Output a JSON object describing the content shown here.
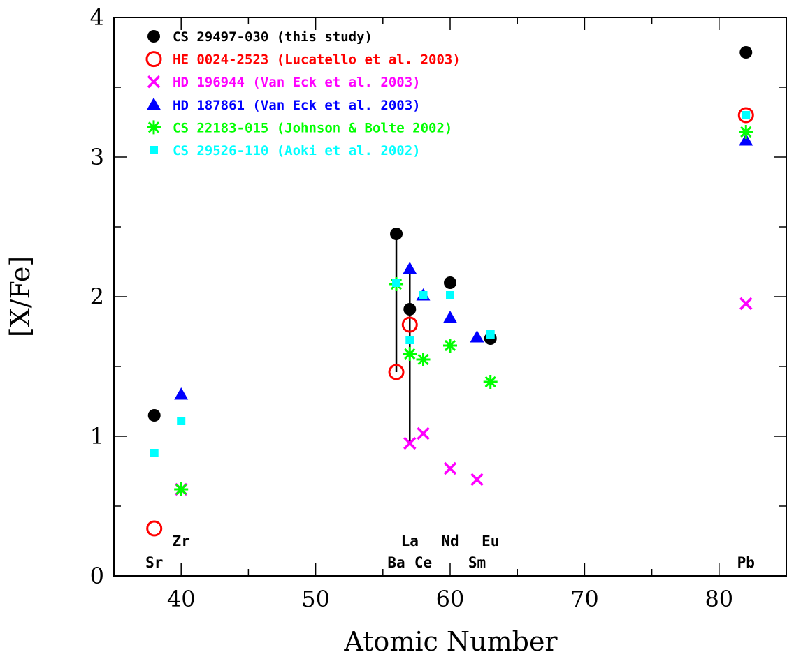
{
  "chart_data": {
    "type": "scatter",
    "xlabel": "Atomic Number",
    "ylabel": "[X/Fe]",
    "xlim": [
      35,
      85
    ],
    "ylim": [
      0,
      4
    ],
    "x_ticks": [
      40,
      50,
      60,
      70,
      80
    ],
    "y_ticks": [
      0,
      1,
      2,
      3,
      4
    ],
    "minor_x_step": 5,
    "minor_y_step": 0.5,
    "grid": false,
    "legend_position": "top-left",
    "series": [
      {
        "name": "CS 29497-030 (this study)",
        "marker": "filled-circle",
        "color": "#000000",
        "points": [
          [
            38,
            1.15
          ],
          [
            56,
            2.45
          ],
          [
            57,
            1.91
          ],
          [
            60,
            2.1
          ],
          [
            63,
            1.7
          ],
          [
            82,
            3.75
          ]
        ]
      },
      {
        "name": "HE 0024-2523 (Lucatello et al. 2003)",
        "marker": "open-circle",
        "color": "#ff0000",
        "points": [
          [
            38,
            0.34
          ],
          [
            56,
            1.46
          ],
          [
            57,
            1.8
          ],
          [
            82,
            3.3
          ]
        ]
      },
      {
        "name": "HD 196944 (Van Eck et al. 2003)",
        "marker": "cross",
        "color": "#ff00ff",
        "points": [
          [
            40,
            0.62
          ],
          [
            57,
            0.95
          ],
          [
            58,
            1.02
          ],
          [
            60,
            0.77
          ],
          [
            62,
            0.69
          ],
          [
            82,
            1.95
          ]
        ]
      },
      {
        "name": "HD 187861 (Van Eck et al. 2003)",
        "marker": "triangle",
        "color": "#0000ff",
        "points": [
          [
            40,
            1.3
          ],
          [
            57,
            2.2
          ],
          [
            58,
            2.01
          ],
          [
            60,
            1.85
          ],
          [
            62,
            1.71
          ],
          [
            82,
            3.12
          ]
        ]
      },
      {
        "name": "CS 22183-015 (Johnson & Bolte 2002)",
        "marker": "asterisk",
        "color": "#00ff00",
        "points": [
          [
            40,
            0.62
          ],
          [
            56,
            2.09
          ],
          [
            57,
            1.59
          ],
          [
            58,
            1.55
          ],
          [
            60,
            1.65
          ],
          [
            63,
            1.39
          ],
          [
            82,
            3.18
          ]
        ]
      },
      {
        "name": "CS 29526-110 (Aoki et al. 2002)",
        "marker": "square",
        "color": "#00ffff",
        "points": [
          [
            38,
            0.88
          ],
          [
            40,
            1.11
          ],
          [
            56,
            2.1
          ],
          [
            57,
            1.69
          ],
          [
            58,
            2.01
          ],
          [
            60,
            2.01
          ],
          [
            63,
            1.73
          ],
          [
            82,
            3.3
          ]
        ]
      }
    ],
    "range_lines": [
      {
        "x": 56,
        "y_from": 1.46,
        "y_to": 2.45
      },
      {
        "x": 57,
        "y_from": 0.95,
        "y_to": 2.2
      }
    ],
    "element_labels": [
      {
        "text": "Sr",
        "x": 38,
        "row": "lower"
      },
      {
        "text": "Zr",
        "x": 40,
        "row": "upper"
      },
      {
        "text": "Ba",
        "x": 56,
        "row": "lower"
      },
      {
        "text": "La",
        "x": 57,
        "row": "upper"
      },
      {
        "text": "Ce",
        "x": 58,
        "row": "lower"
      },
      {
        "text": "Nd",
        "x": 60,
        "row": "upper"
      },
      {
        "text": "Sm",
        "x": 62,
        "row": "lower"
      },
      {
        "text": "Eu",
        "x": 63,
        "row": "upper"
      },
      {
        "text": "Pb",
        "x": 82,
        "row": "lower"
      }
    ]
  }
}
